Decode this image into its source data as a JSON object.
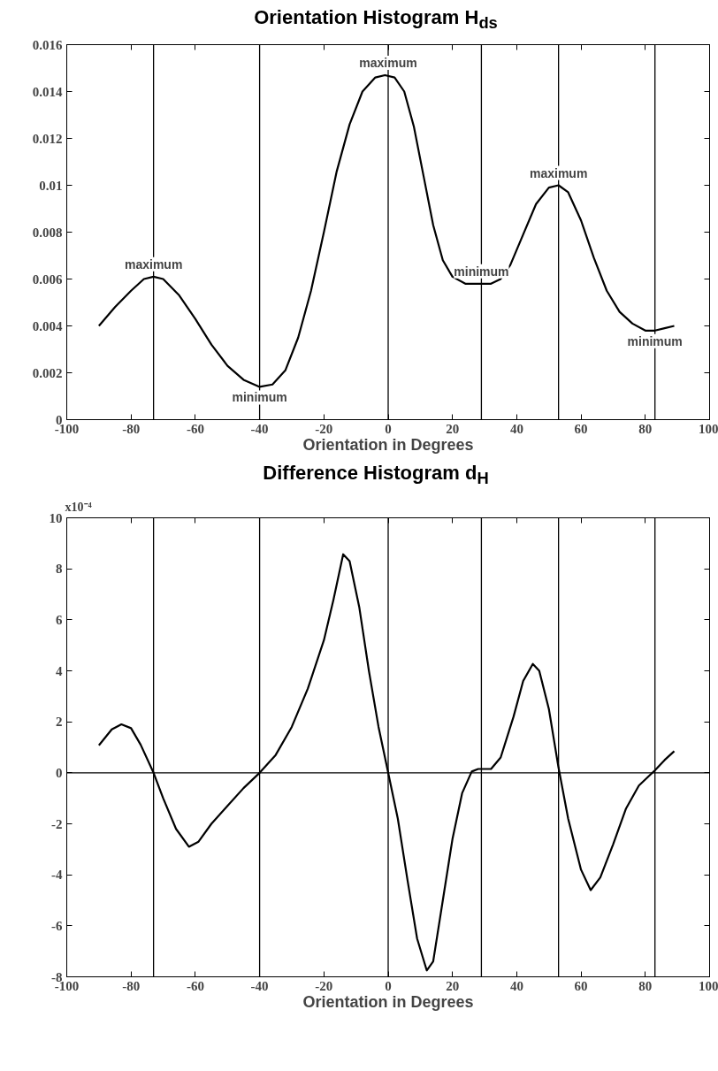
{
  "chart_data": [
    {
      "type": "line",
      "title": "Orientation Histogram H$_{ds}$",
      "xlabel": "Orientation in Degrees",
      "x": [
        -90,
        -85,
        -80,
        -76,
        -73,
        -70,
        -65,
        -60,
        -55,
        -50,
        -45,
        -40,
        -36,
        -32,
        -28,
        -24,
        -20,
        -16,
        -12,
        -8,
        -4,
        -1,
        2,
        5,
        8,
        11,
        14,
        17,
        20,
        24,
        28,
        32,
        35,
        38,
        42,
        46,
        50,
        53,
        56,
        60,
        64,
        68,
        72,
        76,
        80,
        83,
        86,
        89
      ],
      "series": [
        {
          "color": "#000000",
          "values": [
            0.004,
            0.0048,
            0.0055,
            0.006,
            0.0061,
            0.006,
            0.0053,
            0.0043,
            0.0032,
            0.0023,
            0.0017,
            0.0014,
            0.0015,
            0.0021,
            0.0035,
            0.0055,
            0.008,
            0.0106,
            0.0126,
            0.014,
            0.0146,
            0.0147,
            0.0146,
            0.014,
            0.0125,
            0.0104,
            0.0083,
            0.0068,
            0.0061,
            0.0058,
            0.0058,
            0.0058,
            0.006,
            0.0066,
            0.0079,
            0.0092,
            0.0099,
            0.01,
            0.0097,
            0.0085,
            0.0069,
            0.0055,
            0.0046,
            0.0041,
            0.0038,
            0.0038,
            0.0039,
            0.004
          ]
        }
      ],
      "xlim": [
        -100,
        100
      ],
      "xticks": [
        -100,
        -80,
        -60,
        -40,
        -20,
        0,
        20,
        40,
        60,
        80,
        100
      ],
      "ylim": [
        0,
        0.016
      ],
      "yticks": [
        0,
        0.002,
        0.004,
        0.006,
        0.008,
        0.01,
        0.012,
        0.014,
        0.016
      ],
      "ref_lines": [
        {
          "axis": "x",
          "value": -73,
          "label": null
        },
        {
          "axis": "x",
          "value": -40,
          "label": null
        },
        {
          "axis": "x",
          "value": 0,
          "label": null
        },
        {
          "axis": "x",
          "value": 29,
          "label": null
        },
        {
          "axis": "x",
          "value": 53,
          "label": null
        },
        {
          "axis": "x",
          "value": 83,
          "label": null
        }
      ],
      "annotations": [
        {
          "text": "maximum",
          "x": -73,
          "y": 0.0061
        },
        {
          "text": "minimum",
          "x": -40,
          "y": 0.0014
        },
        {
          "text": "maximum",
          "x": 0,
          "y": 0.0147
        },
        {
          "text": "minimum",
          "x": 29,
          "y": 0.0058
        },
        {
          "text": "maximum",
          "x": 53,
          "y": 0.01
        },
        {
          "text": "minimum",
          "x": 83,
          "y": 0.0038
        }
      ],
      "grid": false
    },
    {
      "type": "line",
      "title": "Difference Histogram d$_{H}$",
      "xlabel": "Orientation in Degrees",
      "x": [
        -90,
        -86,
        -83,
        -80,
        -77,
        -73,
        -70,
        -66,
        -62,
        -59,
        -55,
        -50,
        -45,
        -40,
        -35,
        -30,
        -25,
        -20,
        -17,
        -14,
        -12,
        -9,
        -6,
        -3,
        0,
        3,
        6,
        9,
        12,
        14,
        17,
        20,
        23,
        26,
        28,
        32,
        35,
        39,
        42,
        45,
        47,
        50,
        53,
        56,
        60,
        63,
        66,
        70,
        74,
        78,
        83,
        86,
        89
      ],
      "series": [
        {
          "color": "#000000",
          "values": [
            1.08,
            1.7,
            1.9,
            1.75,
            1.1,
            0,
            -1.0,
            -2.2,
            -2.9,
            -2.7,
            -2.0,
            -1.3,
            -0.6,
            0,
            0.7,
            1.8,
            3.3,
            5.2,
            6.8,
            8.57,
            8.3,
            6.5,
            4.0,
            1.8,
            0,
            -1.8,
            -4.2,
            -6.5,
            -7.75,
            -7.4,
            -5.0,
            -2.6,
            -0.8,
            0.05,
            0.15,
            0.15,
            0.6,
            2.2,
            3.6,
            4.27,
            4.0,
            2.5,
            0.2,
            -1.8,
            -3.8,
            -4.6,
            -4.1,
            -2.8,
            -1.4,
            -0.5,
            0.1,
            0.5,
            0.85
          ]
        }
      ],
      "xlim": [
        -100,
        100
      ],
      "xticks": [
        -100,
        -80,
        -60,
        -40,
        -20,
        0,
        20,
        40,
        60,
        80,
        100
      ],
      "ylim": [
        -8,
        10
      ],
      "yticks": [
        -8,
        -6,
        -4,
        -2,
        0,
        2,
        4,
        6,
        8,
        10
      ],
      "ref_lines": [
        {
          "axis": "y",
          "value": 0,
          "label": null
        },
        {
          "axis": "x",
          "value": -73,
          "label": null
        },
        {
          "axis": "x",
          "value": -40,
          "label": null
        },
        {
          "axis": "x",
          "value": 0,
          "label": null
        },
        {
          "axis": "x",
          "value": 29,
          "label": null
        },
        {
          "axis": "x",
          "value": 53,
          "label": null
        },
        {
          "axis": "x",
          "value": 83,
          "label": null
        }
      ],
      "annotations": [
        "x10⁻⁴"
      ],
      "grid": false
    }
  ]
}
